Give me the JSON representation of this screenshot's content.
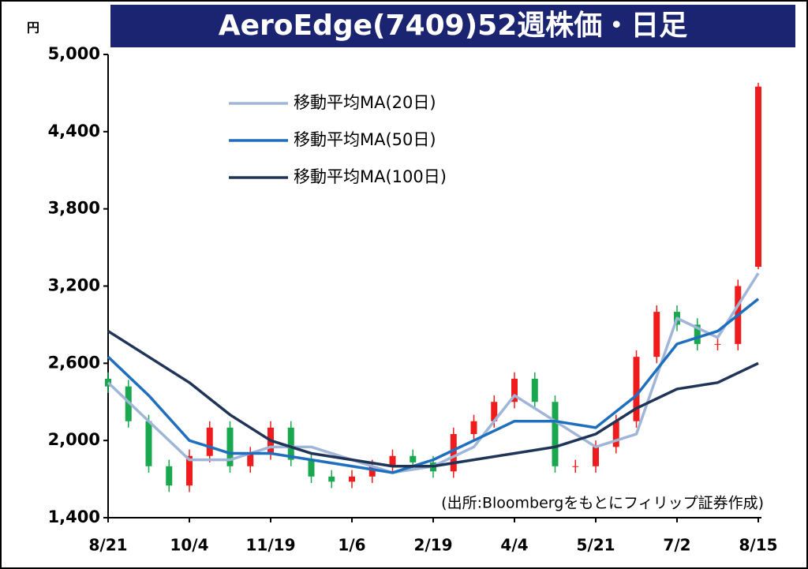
{
  "chart_data": {
    "type": "candlestick",
    "title": "AeroEdge(7409)52週株価・日足",
    "y_unit": "円",
    "source": "(出所:Bloombergをもとにフィリップ証券作成)",
    "xlim": [
      0,
      8
    ],
    "xticks": [
      {
        "value": 0,
        "label": "8/21"
      },
      {
        "value": 1,
        "label": "10/4"
      },
      {
        "value": 2,
        "label": "11/19"
      },
      {
        "value": 3,
        "label": "1/6"
      },
      {
        "value": 4,
        "label": "2/19"
      },
      {
        "value": 5,
        "label": "4/4"
      },
      {
        "value": 6,
        "label": "5/21"
      },
      {
        "value": 7,
        "label": "7/2"
      },
      {
        "value": 8,
        "label": "8/15"
      }
    ],
    "ylim": [
      1400,
      5000
    ],
    "yticks": [
      {
        "value": 1400,
        "label": "1,400"
      },
      {
        "value": 2000,
        "label": "2,000"
      },
      {
        "value": 2600,
        "label": "2,600"
      },
      {
        "value": 3200,
        "label": "3,200"
      },
      {
        "value": 3800,
        "label": "3,800"
      },
      {
        "value": 4400,
        "label": "4,400"
      },
      {
        "value": 5000,
        "label": "5,000"
      }
    ],
    "up_color": "#ee1c1c",
    "down_color": "#1aa84f",
    "candles": {
      "x": [
        0,
        0.25,
        0.5,
        0.75,
        1,
        1.25,
        1.5,
        1.75,
        2,
        2.25,
        2.5,
        2.75,
        3,
        3.25,
        3.5,
        3.75,
        4,
        4.25,
        4.5,
        4.75,
        5,
        5.25,
        5.5,
        5.75,
        6,
        6.25,
        6.5,
        6.75,
        7,
        7.25,
        7.5,
        7.75,
        8
      ],
      "open": [
        2480,
        2420,
        2150,
        1800,
        1650,
        1880,
        2100,
        1800,
        1900,
        2100,
        1850,
        1720,
        1680,
        1720,
        1800,
        1880,
        1830,
        1760,
        2050,
        2150,
        2300,
        2480,
        2300,
        1800,
        1800,
        1950,
        2150,
        2650,
        3000,
        2900,
        2750,
        2750,
        3350
      ],
      "high": [
        2530,
        2470,
        2200,
        1850,
        1930,
        2150,
        2150,
        1950,
        2150,
        2150,
        1900,
        1770,
        1770,
        1850,
        1930,
        1930,
        1880,
        2100,
        2200,
        2350,
        2530,
        2530,
        2350,
        1850,
        2000,
        2200,
        2700,
        3050,
        3050,
        2950,
        2800,
        3250,
        4780
      ],
      "low": [
        2370,
        2100,
        1750,
        1600,
        1600,
        1830,
        1750,
        1750,
        1850,
        1800,
        1670,
        1630,
        1630,
        1670,
        1750,
        1780,
        1710,
        1710,
        2000,
        2100,
        2250,
        2250,
        1750,
        1750,
        1750,
        1900,
        2100,
        2600,
        2850,
        2700,
        2700,
        2700,
        3330
      ],
      "close": [
        2420,
        2150,
        1800,
        1650,
        1880,
        2100,
        1800,
        1900,
        2100,
        1850,
        1720,
        1680,
        1720,
        1800,
        1880,
        1830,
        1760,
        2050,
        2150,
        2300,
        2480,
        2300,
        1800,
        1800,
        1950,
        2150,
        2650,
        3000,
        2900,
        2750,
        2750,
        3200,
        4750
      ]
    },
    "x": [
      0,
      0.5,
      1,
      1.5,
      2,
      2.5,
      3,
      3.5,
      4,
      4.5,
      5,
      5.5,
      6,
      6.5,
      7,
      7.5,
      8
    ],
    "series": [
      {
        "name": "移動平均MA(20日)",
        "color": "#9fb6d8",
        "values": [
          2450,
          2150,
          1850,
          1850,
          1950,
          1950,
          1850,
          1750,
          1800,
          1950,
          2350,
          2150,
          1950,
          2050,
          2950,
          2800,
          3300
        ]
      },
      {
        "name": "移動平均MA(50日)",
        "color": "#1f6fbf",
        "values": [
          2650,
          2350,
          2000,
          1900,
          1900,
          1850,
          1800,
          1750,
          1850,
          2000,
          2150,
          2150,
          2100,
          2350,
          2750,
          2850,
          3100
        ]
      },
      {
        "name": "移動平均MA(100日)",
        "color": "#1f3457",
        "values": [
          2850,
          2650,
          2450,
          2200,
          2000,
          1900,
          1850,
          1800,
          1800,
          1850,
          1900,
          1950,
          2050,
          2250,
          2400,
          2450,
          2600
        ]
      }
    ]
  }
}
